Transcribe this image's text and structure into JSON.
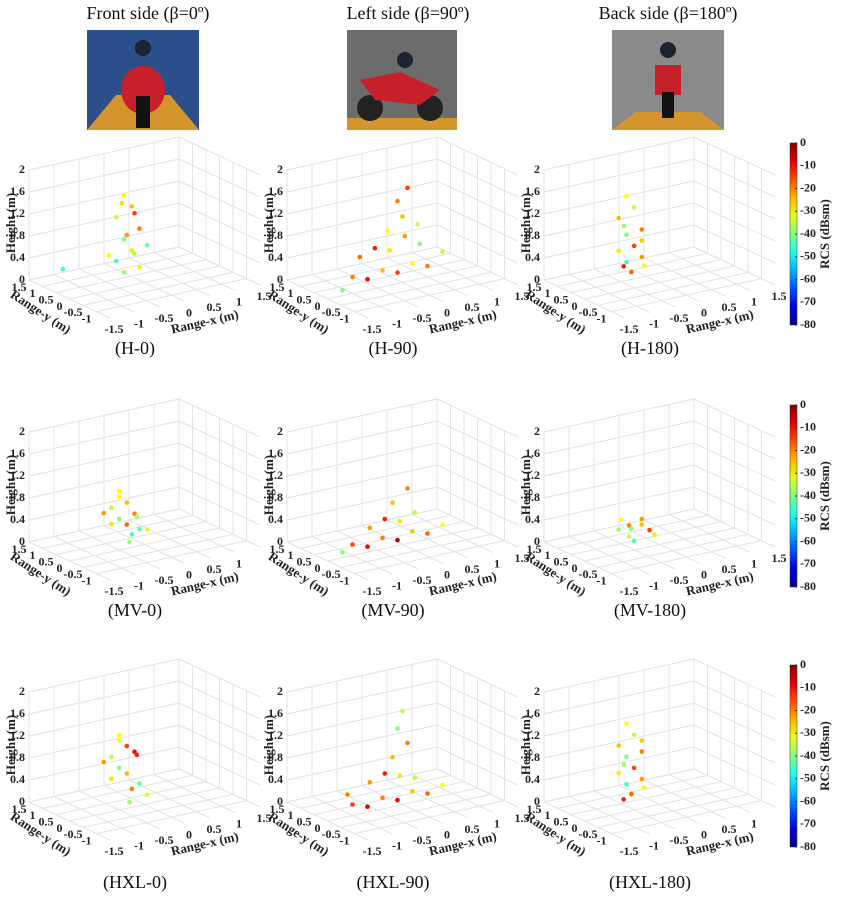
{
  "headers": [
    "Front  side (β=0º)",
    "Left side (β=90º)",
    "Back side (β=180º)"
  ],
  "colorbars": [
    {
      "label": "RCS (dBsm)",
      "clim": [
        -80,
        0
      ],
      "ticks": [
        0,
        -10,
        -20,
        -30,
        -40,
        -50,
        -60,
        -70,
        -80
      ]
    },
    {
      "label": "RCS (dBsm)",
      "clim": [
        -80,
        0
      ],
      "ticks": [
        0,
        -10,
        -20,
        -30,
        -40,
        -50,
        -60,
        -70,
        -80
      ]
    },
    {
      "label": "RCS (dBsm)",
      "clim": [
        -80,
        0
      ],
      "ticks": [
        0,
        -10,
        -20,
        -30,
        -40,
        -50,
        -60,
        -70,
        -80
      ]
    }
  ],
  "chart_data": [
    {
      "type": "scatter3d",
      "label": "(H-0)",
      "xlabel": "Range-x (m)",
      "ylabel": "Range-y (m)",
      "zlabel": "Height (m)",
      "xlim": [
        -1.5,
        1.5
      ],
      "ylim": [
        -1.5,
        1.5
      ],
      "zlim": [
        0,
        2
      ],
      "xticks": [
        -1.5,
        -1,
        -0.5,
        0,
        0.5,
        1,
        1.5
      ],
      "yticks": [
        -1,
        -0.5,
        0,
        0.5,
        1,
        1.5
      ],
      "zticks": [
        0,
        0.4,
        0.8,
        1.2,
        1.6,
        2
      ],
      "x": [
        -0.3,
        -0.2,
        -0.4,
        -0.1,
        -0.3,
        -0.2,
        -0.4,
        -0.1,
        -0.3,
        -0.5,
        -1.2,
        -0.2,
        -0.3,
        -0.1,
        0,
        -0.4
      ],
      "y": [
        0.2,
        0.1,
        0.3,
        0,
        0.2,
        0.1,
        0.3,
        0,
        0.2,
        0.4,
        0.8,
        0,
        0.1,
        0.2,
        -0.1,
        0.1
      ],
      "z": [
        1.6,
        1.4,
        1.2,
        1,
        0.8,
        0.6,
        0.4,
        0.3,
        0.2,
        0.5,
        0.3,
        1.3,
        0.9,
        0.5,
        0.7,
        1.5
      ],
      "values": [
        -30,
        -25,
        -35,
        -20,
        -40,
        -28,
        -45,
        -32,
        -38,
        -30,
        -45,
        -15,
        -22,
        -36,
        -42,
        -27
      ]
    },
    {
      "type": "scatter3d",
      "label": "(H-90)",
      "xlabel": "Range-x (m)",
      "ylabel": "Range-y (m)",
      "zlabel": "Height (m)",
      "xlim": [
        -1.5,
        1.5
      ],
      "ylim": [
        -1.5,
        1.5
      ],
      "zlim": [
        0,
        2
      ],
      "xticks": [
        -1.5,
        -1,
        -0.5,
        0,
        0.5,
        1,
        1.5
      ],
      "yticks": [
        -1,
        -0.5,
        0,
        0.5,
        1,
        1.5
      ],
      "zticks": [
        0,
        0.4,
        0.8,
        1.2,
        1.6,
        2
      ],
      "x": [
        -1.0,
        -0.7,
        -0.4,
        -0.1,
        0.2,
        0.5,
        0.8,
        -0.8,
        -0.5,
        -0.2,
        0.1,
        0.4,
        -0.3,
        0,
        0.3,
        -0.1,
        0.1,
        -1.2
      ],
      "y": [
        0,
        0,
        0,
        0,
        0,
        0,
        0,
        0.1,
        0.1,
        0.1,
        0.1,
        0.1,
        0,
        0,
        0,
        0,
        0,
        0
      ],
      "z": [
        0.3,
        0.2,
        0.3,
        0.2,
        0.3,
        0.2,
        0.4,
        0.6,
        0.7,
        0.6,
        0.8,
        0.6,
        1.0,
        1.2,
        1.0,
        1.5,
        1.7,
        0.1
      ],
      "values": [
        -20,
        -10,
        -25,
        -15,
        -30,
        -20,
        -35,
        -18,
        -12,
        -28,
        -22,
        -40,
        -30,
        -25,
        -35,
        -20,
        -15,
        -40
      ]
    },
    {
      "type": "scatter3d",
      "label": "(H-180)",
      "xlabel": "Range-x (m)",
      "ylabel": "Range-y (m)",
      "zlabel": "Height (m)",
      "xlim": [
        -1.5,
        1.5
      ],
      "ylim": [
        -1.5,
        1.5
      ],
      "zlim": [
        0,
        2
      ],
      "xticks": [
        -1.5,
        -1,
        -0.5,
        0,
        0.5,
        1,
        1.5
      ],
      "yticks": [
        -1,
        -0.5,
        0,
        0.5,
        1,
        1.5
      ],
      "zticks": [
        0,
        0.4,
        0.8,
        1.2,
        1.6,
        2
      ],
      "x": [
        -0.5,
        -0.4,
        -0.6,
        -0.3,
        -0.5,
        -0.4,
        -0.6,
        -0.3,
        -0.5,
        -0.2,
        -0.4,
        -0.6,
        -0.3,
        -0.5
      ],
      "y": [
        0.3,
        0.2,
        0.4,
        0.1,
        0.3,
        0.2,
        0.4,
        0.1,
        0.3,
        0.2,
        0.3,
        0.2,
        0.1,
        0.4
      ],
      "z": [
        1.6,
        1.4,
        1.2,
        1.0,
        0.9,
        0.7,
        0.6,
        0.5,
        0.4,
        0.3,
        0.2,
        1.1,
        0.8,
        0.3
      ],
      "values": [
        -30,
        -35,
        -25,
        -20,
        -40,
        -15,
        -28,
        -22,
        -45,
        -32,
        -18,
        -38,
        -26,
        -12
      ]
    },
    {
      "type": "scatter3d",
      "label": "(MV-0)",
      "xlabel": "Range-x (m)",
      "ylabel": "Range-y (m)",
      "zlabel": "Height (m)",
      "xlim": [
        -1.5,
        1.5
      ],
      "ylim": [
        -1.5,
        1.5
      ],
      "zlim": [
        0,
        2
      ],
      "xticks": [
        -1.5,
        -1,
        -0.5,
        0,
        0.5,
        1
      ],
      "yticks": [
        -1,
        -0.5,
        0,
        0.5,
        1,
        1.5
      ],
      "zticks": [
        0,
        0.4,
        0.8,
        1.2,
        1.6,
        2
      ],
      "x": [
        -0.4,
        -0.3,
        -0.5,
        -0.2,
        -0.4,
        -0.3,
        -0.1,
        -0.5,
        -0.2,
        0,
        -0.3,
        -0.6,
        -0.1,
        -0.4
      ],
      "y": [
        0.2,
        0.1,
        0.3,
        0,
        0.2,
        0.1,
        0,
        0.3,
        0.1,
        -0.1,
        0,
        0.4,
        0.1,
        0.2
      ],
      "z": [
        0.9,
        0.8,
        0.7,
        0.6,
        0.5,
        0.4,
        0.3,
        0.4,
        0.2,
        0.3,
        0.1,
        0.6,
        0.5,
        1.0
      ],
      "values": [
        -30,
        -25,
        -35,
        -20,
        -40,
        -18,
        -42,
        -28,
        -45,
        -33,
        -38,
        -22,
        -36,
        -30
      ]
    },
    {
      "type": "scatter3d",
      "label": "(MV-90)",
      "xlabel": "Range-x (m)",
      "ylabel": "Range-y (m)",
      "zlabel": "Height (m)",
      "xlim": [
        -1.5,
        1.5
      ],
      "ylim": [
        -1.5,
        1.5
      ],
      "zlim": [
        0,
        2
      ],
      "xticks": [
        -1.5,
        -1,
        -0.5,
        0,
        0.5,
        1,
        1.5
      ],
      "yticks": [
        -1,
        -0.5,
        0,
        0.5,
        1,
        1.5
      ],
      "zticks": [
        0,
        0.4,
        0.8,
        1.2,
        1.6,
        2
      ],
      "x": [
        -1.0,
        -0.7,
        -0.4,
        -0.1,
        0.2,
        0.5,
        0.8,
        -0.6,
        -0.3,
        0,
        0.3,
        -0.2,
        0.1,
        -1.2
      ],
      "y": [
        0,
        0,
        0,
        0,
        0,
        0,
        0,
        0.1,
        0.1,
        0.1,
        0.1,
        0,
        0,
        0
      ],
      "z": [
        0.2,
        0.1,
        0.2,
        0.1,
        0.2,
        0.1,
        0.2,
        0.4,
        0.5,
        0.4,
        0.5,
        0.8,
        1.0,
        0.1
      ],
      "values": [
        -15,
        -10,
        -20,
        -5,
        -25,
        -18,
        -30,
        -22,
        -12,
        -28,
        -35,
        -25,
        -20,
        -40
      ]
    },
    {
      "type": "scatter3d",
      "label": "(MV-180)",
      "xlabel": "Range-x (m)",
      "ylabel": "Range-y (m)",
      "zlabel": "Height (m)",
      "xlim": [
        -1.5,
        1.5
      ],
      "ylim": [
        -1.5,
        1.5
      ],
      "zlim": [
        0,
        2
      ],
      "xticks": [
        -1.5,
        -1,
        -0.5,
        0,
        0.5,
        1,
        1.5
      ],
      "yticks": [
        -1,
        -0.5,
        0,
        0.5,
        1,
        1.5
      ],
      "zticks": [
        0,
        0.4,
        0.8,
        1.2,
        1.6,
        2
      ],
      "x": [
        -0.6,
        -0.5,
        -0.4,
        -0.3,
        -0.5,
        -0.2,
        -0.4,
        -0.1,
        -0.6,
        -0.3
      ],
      "y": [
        0.3,
        0.2,
        0.3,
        0.1,
        0.2,
        0,
        0.2,
        0,
        0.4,
        0.1
      ],
      "z": [
        0.5,
        0.4,
        0.3,
        0.4,
        0.2,
        0.3,
        0.1,
        0.2,
        0.3,
        0.5
      ],
      "values": [
        -30,
        -20,
        -40,
        -25,
        -35,
        -15,
        -45,
        -28,
        -38,
        -22
      ]
    },
    {
      "type": "scatter3d",
      "label": "(HXL-0)",
      "xlabel": "Range-x (m)",
      "ylabel": "Range-y (m)",
      "zlabel": "Height (m)",
      "xlim": [
        -1.5,
        1.5
      ],
      "ylim": [
        -1.5,
        1.5
      ],
      "zlim": [
        0,
        2
      ],
      "xticks": [
        -1.5,
        -1,
        -0.5,
        0,
        0.5,
        1,
        1.5
      ],
      "yticks": [
        -1,
        -0.5,
        0,
        0.5,
        1,
        1.5
      ],
      "zticks": [
        0,
        0.4,
        0.8,
        1.2,
        1.6,
        2
      ],
      "x": [
        -0.4,
        -0.3,
        -0.5,
        -0.2,
        -0.4,
        -0.3,
        -0.1,
        -0.5,
        -0.2,
        0,
        -0.3,
        -0.6,
        -0.1,
        -0.4
      ],
      "y": [
        0.2,
        0.1,
        0.3,
        0,
        0.2,
        0.1,
        0,
        0.3,
        0.1,
        -0.1,
        0,
        0.4,
        0.1,
        0.2
      ],
      "z": [
        1.3,
        1.1,
        0.9,
        1.0,
        0.7,
        0.6,
        0.4,
        0.5,
        0.3,
        0.2,
        0.1,
        0.8,
        0.9,
        1.2
      ],
      "values": [
        -30,
        -15,
        -35,
        -10,
        -40,
        -25,
        -42,
        -28,
        -20,
        -33,
        -38,
        -22,
        -12,
        -30
      ]
    },
    {
      "type": "scatter3d",
      "label": "(HXL-90)",
      "xlabel": "Range-x (m)",
      "ylabel": "Range-y (m)",
      "zlabel": "Height (m)",
      "xlim": [
        -1.5,
        1.5
      ],
      "ylim": [
        -1.5,
        1.5
      ],
      "zlim": [
        0,
        2
      ],
      "xticks": [
        -1.5,
        -1,
        -0.5,
        0,
        0.5,
        1,
        1.5
      ],
      "yticks": [
        -1,
        -0.5,
        0,
        0.5,
        1,
        1.5
      ],
      "zticks": [
        0,
        0.4,
        0.8,
        1.2,
        1.6,
        2
      ],
      "x": [
        -1.0,
        -0.7,
        -0.4,
        -0.1,
        0.2,
        0.5,
        0.8,
        -0.6,
        -0.3,
        0,
        0.3,
        -0.2,
        0.1,
        -0.1,
        0,
        -1.1
      ],
      "y": [
        0,
        0,
        0,
        0,
        0,
        0,
        0,
        0.1,
        0.1,
        0.1,
        0.1,
        0,
        0,
        0,
        0,
        0
      ],
      "z": [
        0.2,
        0.1,
        0.2,
        0.1,
        0.2,
        0.1,
        0.2,
        0.5,
        0.6,
        0.5,
        0.4,
        0.9,
        1.1,
        1.4,
        1.7,
        0.4
      ],
      "values": [
        -15,
        -8,
        -20,
        -10,
        -25,
        -18,
        -30,
        -22,
        -12,
        -28,
        -35,
        -25,
        -20,
        -40,
        -35,
        -20
      ]
    },
    {
      "type": "scatter3d",
      "label": "(HXL-180)",
      "xlabel": "Range-x (m)",
      "ylabel": "Range-y (m)",
      "zlabel": "Height (m)",
      "xlim": [
        -1.5,
        1.5
      ],
      "ylim": [
        -1.5,
        1.5
      ],
      "zlim": [
        0,
        2
      ],
      "xticks": [
        -1.5,
        -1,
        -0.5,
        0,
        0.5,
        1
      ],
      "yticks": [
        -1,
        -0.5,
        0,
        0.5,
        1,
        1.5
      ],
      "zticks": [
        0,
        0.4,
        0.8,
        1.2,
        1.6,
        2
      ],
      "x": [
        -0.5,
        -0.4,
        -0.6,
        -0.3,
        -0.5,
        -0.4,
        -0.6,
        -0.3,
        -0.5,
        -0.2,
        -0.4,
        -0.6,
        -0.3,
        -0.5
      ],
      "y": [
        0.3,
        0.2,
        0.4,
        0.1,
        0.3,
        0.2,
        0.4,
        0.1,
        0.3,
        0.2,
        0.3,
        0.2,
        0.1,
        0.4
      ],
      "z": [
        1.5,
        1.3,
        1.1,
        1.0,
        0.9,
        0.7,
        0.6,
        0.5,
        0.4,
        0.3,
        0.2,
        0.8,
        1.2,
        0.1
      ],
      "values": [
        -30,
        -35,
        -25,
        -20,
        -40,
        -15,
        -28,
        -22,
        -45,
        -32,
        -18,
        -38,
        -26,
        -12
      ]
    }
  ]
}
